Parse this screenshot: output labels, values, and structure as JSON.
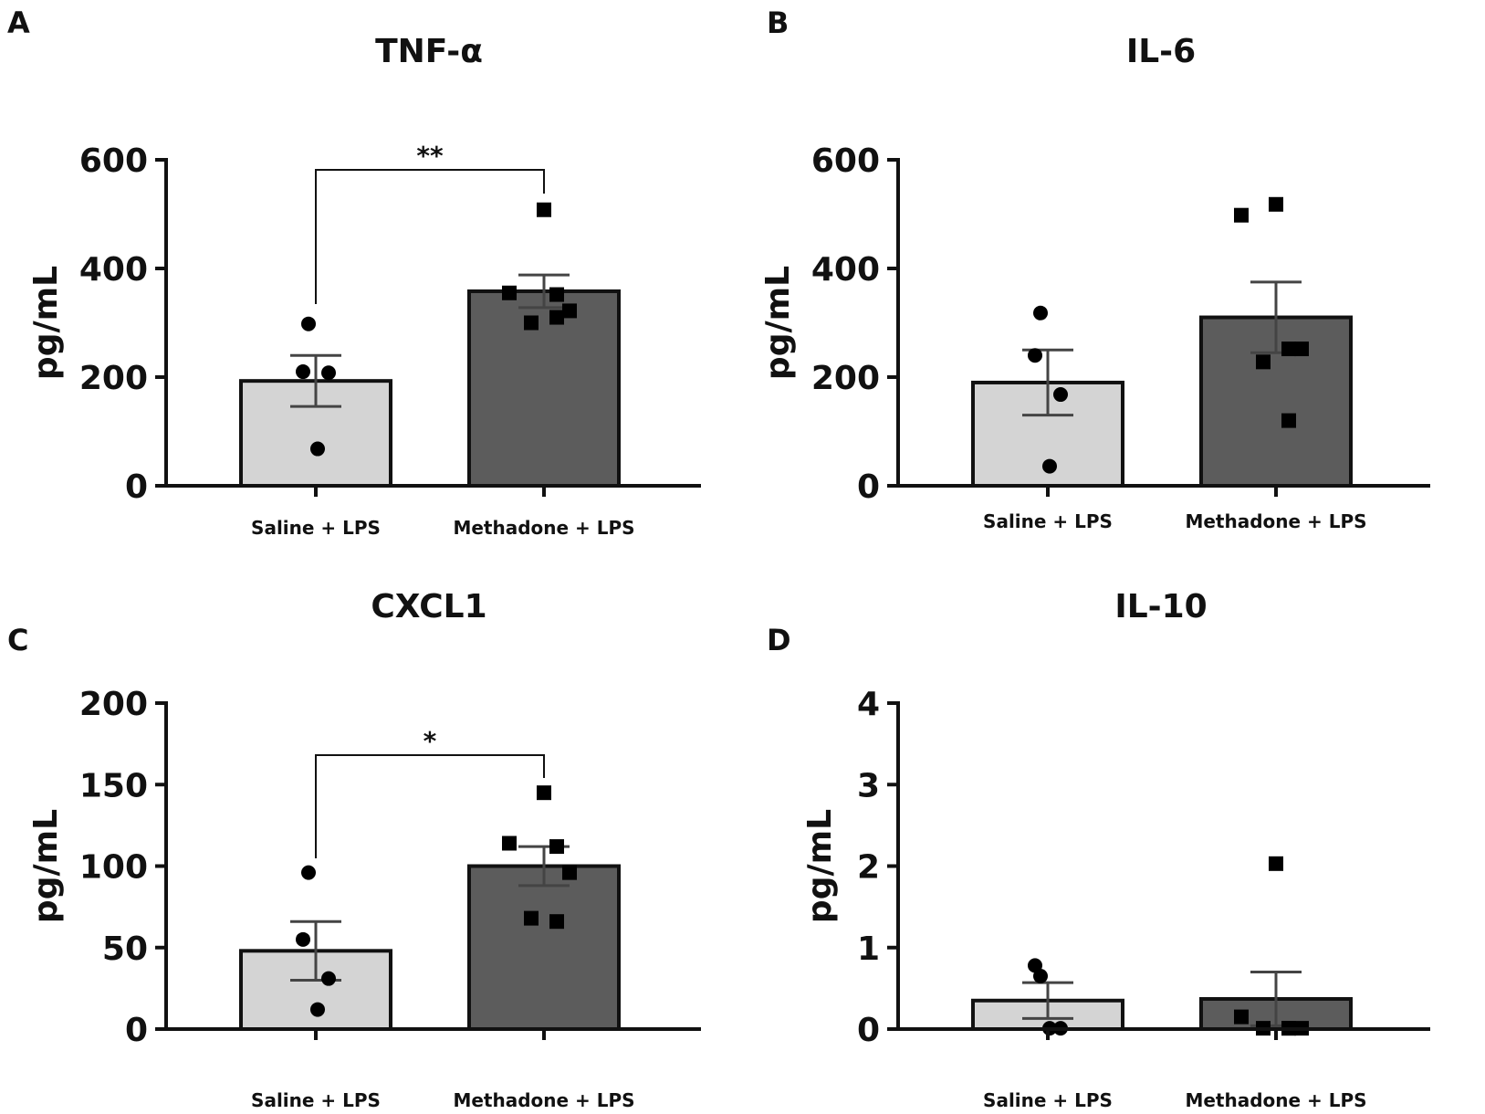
{
  "chart_data": [
    {
      "panel": "A",
      "type": "bar",
      "title": "TNF-α",
      "ylabel": "pg/mL",
      "ylim": [
        0,
        600
      ],
      "yticks": [
        0,
        200,
        400,
        600
      ],
      "categories": [
        "Saline + LPS",
        "Methadone + LPS"
      ],
      "values": [
        193,
        358
      ],
      "sem": [
        47,
        30
      ],
      "points": [
        [
          298,
          210,
          208,
          68
        ],
        [
          508,
          355,
          352,
          322,
          300,
          310
        ]
      ],
      "markers": [
        "circle",
        "square"
      ],
      "bar_colors": [
        "#d4d4d4",
        "#5c5c5c"
      ],
      "significance": "**"
    },
    {
      "panel": "B",
      "type": "bar",
      "title": "IL-6",
      "ylabel": "pg/mL",
      "ylim": [
        0,
        600
      ],
      "yticks": [
        0,
        200,
        400,
        600
      ],
      "categories": [
        "Saline + LPS",
        "Methadone + LPS"
      ],
      "values": [
        190,
        310
      ],
      "sem": [
        60,
        65
      ],
      "points": [
        [
          318,
          240,
          168,
          36
        ],
        [
          518,
          498,
          252,
          252,
          228,
          120
        ]
      ],
      "markers": [
        "circle",
        "square"
      ],
      "bar_colors": [
        "#d4d4d4",
        "#5c5c5c"
      ],
      "significance": ""
    },
    {
      "panel": "C",
      "type": "bar",
      "title": "CXCL1",
      "ylabel": "pg/mL",
      "ylim": [
        0,
        200
      ],
      "yticks": [
        0,
        50,
        100,
        150,
        200
      ],
      "categories": [
        "Saline + LPS",
        "Methadone + LPS"
      ],
      "values": [
        48,
        100
      ],
      "sem": [
        18,
        12
      ],
      "points": [
        [
          96,
          55,
          31,
          12
        ],
        [
          145,
          114,
          112,
          96,
          68,
          66
        ]
      ],
      "markers": [
        "circle",
        "square"
      ],
      "bar_colors": [
        "#d4d4d4",
        "#5c5c5c"
      ],
      "significance": "*"
    },
    {
      "panel": "D",
      "type": "bar",
      "title": "IL-10",
      "ylabel": "pg/mL",
      "ylim": [
        0,
        4
      ],
      "yticks": [
        0,
        1,
        2,
        3,
        4
      ],
      "categories": [
        "Saline + LPS",
        "Methadone + LPS"
      ],
      "values": [
        0.35,
        0.37
      ],
      "sem": [
        0.22,
        0.33
      ],
      "points": [
        [
          0.65,
          0.78,
          0.01,
          0.01
        ],
        [
          2.03,
          0.15,
          0.01,
          0.01,
          0.01,
          0.01
        ]
      ],
      "markers": [
        "circle",
        "square"
      ],
      "bar_colors": [
        "#d4d4d4",
        "#5c5c5c"
      ],
      "significance": ""
    }
  ]
}
